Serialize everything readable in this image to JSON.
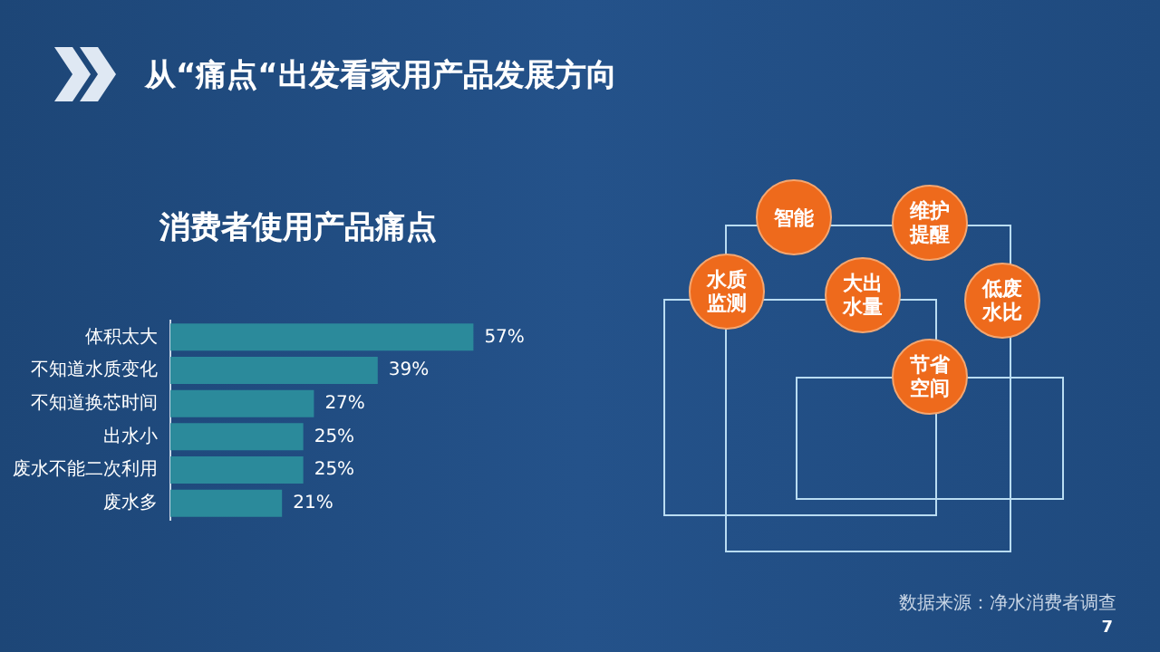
{
  "chart_data": {
    "type": "bar",
    "orientation": "horizontal",
    "title": "从“痛点“出发看家用产品发展方向",
    "subtitle": "消费者使用产品痛点",
    "categories": [
      "体积太大",
      "不知道水质变化",
      "不知道换芯时间",
      "出水小",
      "废水不能二次利用",
      "废水多"
    ],
    "values": [
      57,
      39,
      27,
      25,
      25,
      21
    ],
    "value_labels": [
      "57%",
      "39%",
      "27%",
      "25%",
      "25%",
      "21%"
    ],
    "color": "#2b8a9b",
    "grid": false,
    "tick_labels": "y",
    "annotations": [
      "智能",
      "维护提醒",
      "水质监测",
      "大出水量",
      "低废水比",
      "节省空间",
      "数据来源：净水消费者调查",
      "7"
    ]
  }
}
